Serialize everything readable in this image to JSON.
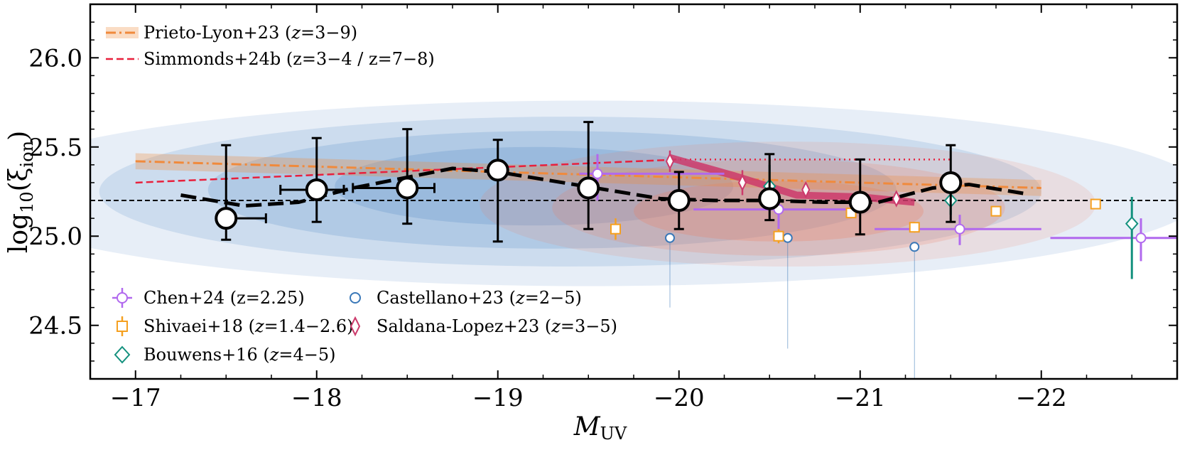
{
  "chart_data": {
    "type": "scatter",
    "title": "",
    "xlabel": "M",
    "xlabel_sub": "UV",
    "ylabel": "log",
    "ylabel_sub": "10",
    "ylabel_tail": "(ξ",
    "ylabel_tail_sub": "ion",
    "ylabel_close": ")",
    "xlim": [
      -16.75,
      -22.75
    ],
    "ylim": [
      24.2,
      26.3
    ],
    "x_ticks": [
      -17,
      -18,
      -19,
      -20,
      -21,
      -22
    ],
    "x_tick_labels": [
      "−17",
      "−18",
      "−19",
      "−20",
      "−21",
      "−22"
    ],
    "y_ticks": [
      24.5,
      25.0,
      25.5,
      26.0
    ],
    "y_tick_labels": [
      "24.5",
      "25.0",
      "25.5",
      "26.0"
    ],
    "reference_line_y": 25.2,
    "colors": {
      "prieto": "#f08a3c",
      "simmonds": "#e8203c",
      "chen": "#b169ee",
      "shivaei": "#f5a020",
      "bouwens": "#14917e",
      "castellano": "#3a78b8",
      "saldana": "#cc3a6b",
      "main": "#000000",
      "contour_blue": "#5b8fc8",
      "contour_red": "#f07b5e"
    },
    "legend_top": [
      {
        "key": "prieto",
        "label": "Prieto-Lyon+23 (",
        "z": "z",
        "tail": "=3−9)"
      },
      {
        "key": "simmonds",
        "label": "Simmonds+24b (z=3−4 / z=7−8)",
        "z": "",
        "tail": ""
      }
    ],
    "legend_bottom": [
      {
        "key": "chen",
        "label": "Chen+24 (z=2.25)",
        "z": "",
        "tail": ""
      },
      {
        "key": "shivaei",
        "label": "Shivaei+18 (",
        "z": "z",
        "tail": "=1.4−2.6)"
      },
      {
        "key": "bouwens",
        "label": "Bouwens+16 (",
        "z": "z",
        "tail": "=4−5)"
      },
      {
        "key": "castellano",
        "label": "Castellano+23 (",
        "z": "z",
        "tail": "=2−5)"
      },
      {
        "key": "saldana",
        "label": "Saldana-Lopez+23 (",
        "z": "z",
        "tail": "=3−5)"
      }
    ],
    "main_points": [
      {
        "x": -17.5,
        "y": 25.1,
        "ylo": 24.98,
        "yhi": 25.51,
        "xlo": -17.5,
        "xhi": -17.72
      },
      {
        "x": -18.0,
        "y": 25.26,
        "ylo": 25.08,
        "yhi": 25.55,
        "xlo": -17.8,
        "xhi": -18.15
      },
      {
        "x": -18.5,
        "y": 25.27,
        "ylo": 25.07,
        "yhi": 25.6,
        "xlo": -18.2,
        "xhi": -18.65
      },
      {
        "x": -19.0,
        "y": 25.37,
        "ylo": 24.97,
        "yhi": 25.54,
        "xlo": -19.0,
        "xhi": -19.0
      },
      {
        "x": -19.5,
        "y": 25.27,
        "ylo": 25.04,
        "yhi": 25.64,
        "xlo": -19.5,
        "xhi": -19.5
      },
      {
        "x": -20.0,
        "y": 25.2,
        "ylo": 25.04,
        "yhi": 25.36,
        "xlo": -20.0,
        "xhi": -20.0
      },
      {
        "x": -20.5,
        "y": 25.21,
        "ylo": 25.09,
        "yhi": 25.46,
        "xlo": -20.5,
        "xhi": -20.5
      },
      {
        "x": -21.0,
        "y": 25.19,
        "ylo": 25.01,
        "yhi": 25.43,
        "xlo": -21.0,
        "xhi": -21.0
      },
      {
        "x": -21.5,
        "y": 25.3,
        "ylo": 25.08,
        "yhi": 25.51,
        "xlo": -21.5,
        "xhi": -21.5
      }
    ],
    "main_trend": {
      "x": [
        -17.25,
        -17.6,
        -17.9,
        -18.2,
        -18.5,
        -18.75,
        -19.0,
        -19.3,
        -19.6,
        -19.9,
        -20.2,
        -20.5,
        -20.8,
        -21.1,
        -21.4,
        -21.6,
        -21.9
      ],
      "y": [
        25.23,
        25.17,
        25.19,
        25.27,
        25.33,
        25.38,
        25.36,
        25.31,
        25.26,
        25.21,
        25.2,
        25.2,
        25.19,
        25.19,
        25.27,
        25.29,
        25.24
      ]
    },
    "prieto": {
      "x": [
        -17.0,
        -22.0
      ],
      "y": [
        25.42,
        25.27
      ],
      "band": 0.045
    },
    "simmonds_low": {
      "x": [
        -17.0,
        -20.0
      ],
      "y": [
        25.3,
        25.43
      ]
    },
    "simmonds_high": {
      "x": [
        -19.95,
        -21.5
      ],
      "y": [
        25.43,
        25.43
      ]
    },
    "saldana_band": {
      "x": [
        -19.95,
        -20.3,
        -20.65,
        -21.0,
        -21.3
      ],
      "y": [
        25.44,
        25.34,
        25.23,
        25.22,
        25.19
      ]
    },
    "chen": [
      {
        "x": -19.55,
        "y": 25.35,
        "xlo": -19.45,
        "xhi": -20.25,
        "ylo": 25.2,
        "yhi": 25.46
      },
      {
        "x": -20.55,
        "y": 25.15,
        "xlo": -20.08,
        "xhi": -21.0,
        "ylo": 25.04,
        "yhi": 25.23
      },
      {
        "x": -21.55,
        "y": 25.04,
        "xlo": -21.08,
        "xhi": -22.0,
        "ylo": 24.95,
        "yhi": 25.12
      },
      {
        "x": -22.55,
        "y": 24.99,
        "xlo": -22.05,
        "xhi": -22.75,
        "ylo": 24.86,
        "yhi": 25.1
      }
    ],
    "shivaei": [
      {
        "x": -19.65,
        "y": 25.04,
        "yerr": 0.06
      },
      {
        "x": -20.55,
        "y": 25.0,
        "yerr": 0.04
      },
      {
        "x": -20.95,
        "y": 25.13,
        "yerr": 0.03
      },
      {
        "x": -21.3,
        "y": 25.05,
        "yerr": 0.03
      },
      {
        "x": -21.75,
        "y": 25.14,
        "yerr": 0.02
      },
      {
        "x": -22.3,
        "y": 25.18,
        "yerr": 0.02
      }
    ],
    "bouwens": [
      {
        "x": -20.5,
        "y": 25.28,
        "ylo": 25.15,
        "yhi": 25.4
      },
      {
        "x": -21.5,
        "y": 25.2,
        "ylo": 25.12,
        "yhi": 25.28
      },
      {
        "x": -22.5,
        "y": 25.07,
        "ylo": 24.76,
        "yhi": 25.22
      }
    ],
    "castellano": [
      {
        "x": -19.95,
        "y": 24.99,
        "ylo": 24.6
      },
      {
        "x": -20.6,
        "y": 24.99,
        "ylo": 24.37
      },
      {
        "x": -21.3,
        "y": 24.94,
        "ylo": 24.2
      }
    ],
    "saldana": [
      {
        "x": -19.95,
        "y": 25.42,
        "yerr": 0.06
      },
      {
        "x": -20.35,
        "y": 25.3,
        "yerr": 0.07
      },
      {
        "x": -20.7,
        "y": 25.26,
        "yerr": 0.04
      },
      {
        "x": -21.2,
        "y": 25.21,
        "yerr": 0.03
      }
    ],
    "contours_blue": [
      {
        "cx": -19.5,
        "cy": 25.24,
        "rx": 3.4,
        "ry": 0.52
      },
      {
        "cx": -19.4,
        "cy": 25.25,
        "rx": 2.6,
        "ry": 0.42
      },
      {
        "cx": -19.3,
        "cy": 25.26,
        "rx": 1.9,
        "ry": 0.33
      },
      {
        "cx": -19.2,
        "cy": 25.28,
        "rx": 1.1,
        "ry": 0.22
      }
    ],
    "contours_red": [
      {
        "cx": -20.6,
        "cy": 25.18,
        "rx": 1.7,
        "ry": 0.35
      },
      {
        "cx": -20.55,
        "cy": 25.16,
        "rx": 1.25,
        "ry": 0.27
      },
      {
        "cx": -20.55,
        "cy": 25.14,
        "rx": 0.8,
        "ry": 0.17
      }
    ]
  }
}
